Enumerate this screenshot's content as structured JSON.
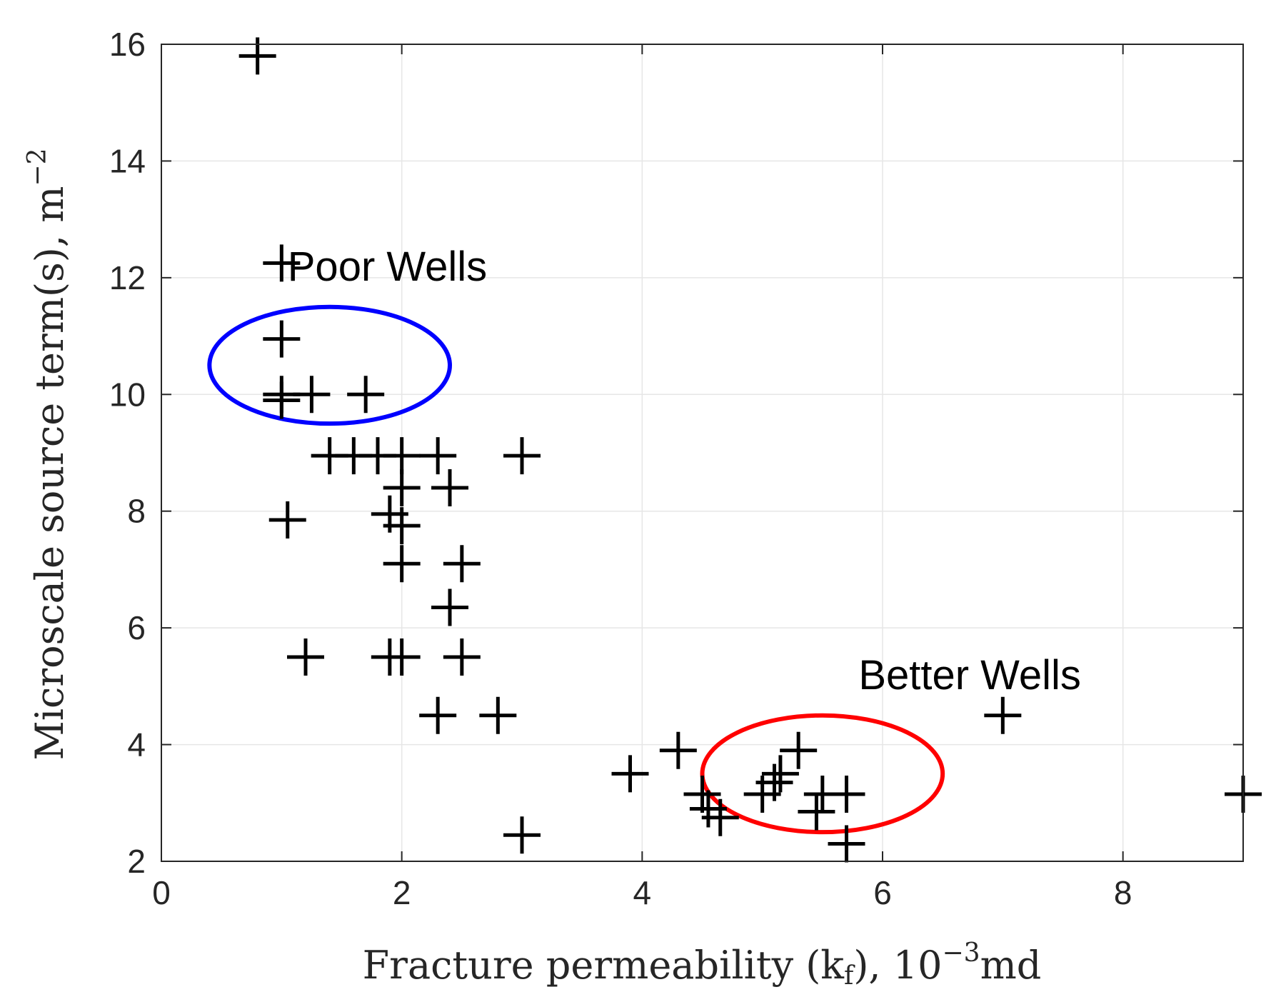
{
  "chart_data": {
    "type": "scatter",
    "title": "",
    "xlabel": "Fracture permeability (k",
    "xlabel_sub": "f",
    "xlabel_tail": "), 10",
    "xlabel_sup": "−3",
    "xlabel_unit": "md",
    "ylabel": "Microscale source term(s), m",
    "ylabel_sup": "−2",
    "xlim": [
      0,
      9
    ],
    "ylim": [
      2,
      16
    ],
    "xticks": [
      0,
      2,
      4,
      6,
      8
    ],
    "yticks": [
      2,
      4,
      6,
      8,
      10,
      12,
      14,
      16
    ],
    "grid": true,
    "marker": "plus",
    "marker_color": "#000000",
    "points": [
      [
        0.8,
        15.8
      ],
      [
        1.0,
        12.25
      ],
      [
        1.0,
        10.95
      ],
      [
        1.0,
        10.0
      ],
      [
        1.0,
        9.9
      ],
      [
        1.25,
        10.0
      ],
      [
        1.7,
        10.0
      ],
      [
        1.4,
        8.95
      ],
      [
        1.6,
        8.95
      ],
      [
        1.8,
        8.95
      ],
      [
        2.0,
        8.95
      ],
      [
        2.3,
        8.95
      ],
      [
        3.0,
        8.95
      ],
      [
        2.0,
        8.4
      ],
      [
        2.4,
        8.4
      ],
      [
        1.05,
        7.85
      ],
      [
        1.9,
        7.95
      ],
      [
        2.0,
        7.75
      ],
      [
        2.0,
        7.1
      ],
      [
        2.5,
        7.1
      ],
      [
        2.4,
        6.35
      ],
      [
        1.2,
        5.5
      ],
      [
        1.9,
        5.5
      ],
      [
        2.0,
        5.5
      ],
      [
        2.5,
        5.5
      ],
      [
        2.3,
        4.5
      ],
      [
        2.8,
        4.5
      ],
      [
        3.0,
        2.45
      ],
      [
        3.9,
        3.5
      ],
      [
        4.3,
        3.9
      ],
      [
        4.5,
        3.15
      ],
      [
        4.55,
        2.9
      ],
      [
        4.65,
        2.75
      ],
      [
        5.0,
        3.15
      ],
      [
        5.1,
        3.35
      ],
      [
        5.15,
        3.5
      ],
      [
        5.3,
        3.9
      ],
      [
        5.5,
        3.15
      ],
      [
        5.45,
        2.85
      ],
      [
        5.7,
        3.15
      ],
      [
        5.7,
        2.3
      ],
      [
        7.0,
        4.5
      ],
      [
        9.0,
        3.15
      ]
    ],
    "annotations": [
      {
        "text": "Poor Wells",
        "x": 1.05,
        "y": 11.95
      },
      {
        "text": "Better Wells",
        "x": 5.8,
        "y": 4.95
      }
    ],
    "ellipses": [
      {
        "name": "poor-wells",
        "color": "#0000ff",
        "cx": 1.4,
        "cy": 10.5,
        "rx": 1.0,
        "ry": 1.0
      },
      {
        "name": "better-wells",
        "color": "#ff0000",
        "cx": 5.5,
        "cy": 3.5,
        "rx": 1.0,
        "ry": 1.0
      }
    ]
  }
}
